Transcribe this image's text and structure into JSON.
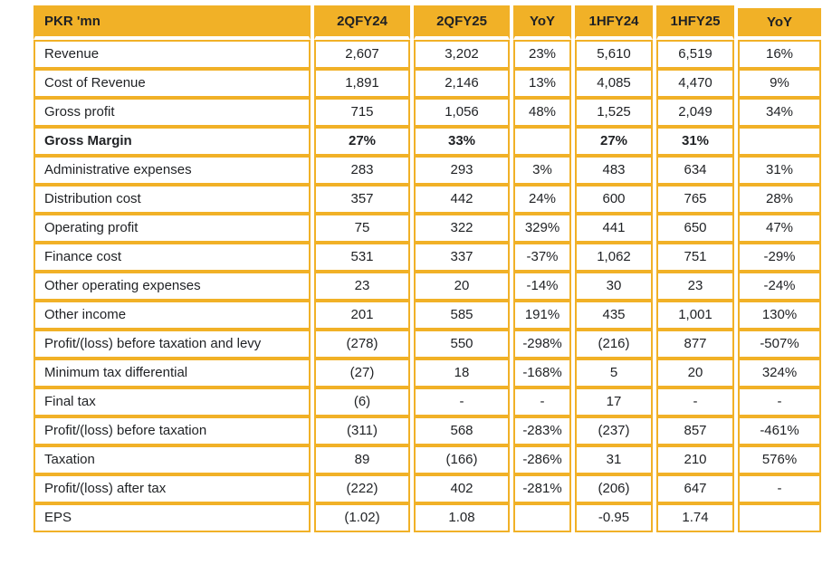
{
  "colors": {
    "header_bg": "#F1B127",
    "grid": "#F1B127",
    "text": "#1F2124",
    "row_bg": "#FFFFFF"
  },
  "table": {
    "columns": [
      "PKR 'mn",
      "2QFY24",
      "2QFY25",
      "YoY",
      "1HFY24",
      "1HFY25",
      "YoY"
    ],
    "rows": [
      {
        "label": "Revenue",
        "bold": false,
        "values": [
          "2,607",
          "3,202",
          "23%",
          "5,610",
          "6,519",
          "16%"
        ]
      },
      {
        "label": "Cost of Revenue",
        "bold": false,
        "values": [
          "1,891",
          "2,146",
          "13%",
          "4,085",
          "4,470",
          "9%"
        ]
      },
      {
        "label": "Gross profit",
        "bold": false,
        "values": [
          "715",
          "1,056",
          "48%",
          "1,525",
          "2,049",
          "34%"
        ]
      },
      {
        "label": "Gross Margin",
        "bold": true,
        "values": [
          "27%",
          "33%",
          "",
          "27%",
          "31%",
          ""
        ]
      },
      {
        "label": "Administrative expenses",
        "bold": false,
        "values": [
          "283",
          "293",
          "3%",
          "483",
          "634",
          "31%"
        ]
      },
      {
        "label": "Distribution cost",
        "bold": false,
        "values": [
          "357",
          "442",
          "24%",
          "600",
          "765",
          "28%"
        ]
      },
      {
        "label": "Operating profit",
        "bold": false,
        "values": [
          "75",
          "322",
          "329%",
          "441",
          "650",
          "47%"
        ]
      },
      {
        "label": "Finance cost",
        "bold": false,
        "values": [
          "531",
          "337",
          "-37%",
          "1,062",
          "751",
          "-29%"
        ]
      },
      {
        "label": "Other operating expenses",
        "bold": false,
        "values": [
          "23",
          "20",
          "-14%",
          "30",
          "23",
          "-24%"
        ]
      },
      {
        "label": "Other income",
        "bold": false,
        "values": [
          "201",
          "585",
          "191%",
          "435",
          "1,001",
          "130%"
        ]
      },
      {
        "label": "Profit/(loss) before taxation and levy",
        "bold": false,
        "values": [
          "(278)",
          "550",
          "-298%",
          "(216)",
          "877",
          "-507%"
        ]
      },
      {
        "label": "Minimum tax differential",
        "bold": false,
        "values": [
          "(27)",
          "18",
          "-168%",
          "5",
          "20",
          "324%"
        ]
      },
      {
        "label": "Final tax",
        "bold": false,
        "values": [
          "(6)",
          "-",
          "-",
          "17",
          "-",
          "-"
        ]
      },
      {
        "label": "Profit/(loss) before taxation",
        "bold": false,
        "values": [
          "(311)",
          "568",
          "-283%",
          "(237)",
          "857",
          "-461%"
        ]
      },
      {
        "label": "Taxation",
        "bold": false,
        "values": [
          "89",
          "(166)",
          "-286%",
          "31",
          "210",
          "576%"
        ]
      },
      {
        "label": "Profit/(loss) after tax",
        "bold": false,
        "values": [
          "(222)",
          "402",
          "-281%",
          "(206)",
          "647",
          "-"
        ]
      },
      {
        "label": "EPS",
        "bold": false,
        "values": [
          "(1.02)",
          "1.08",
          "",
          "-0.95",
          "1.74",
          ""
        ]
      }
    ]
  }
}
